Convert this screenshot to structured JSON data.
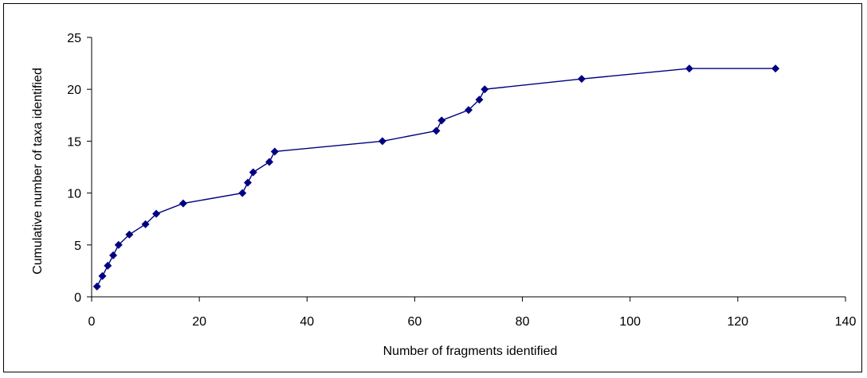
{
  "chart_data": {
    "type": "line",
    "title": "",
    "xlabel": "Number of fragments identified",
    "ylabel": "Cumulative number of taxa identified",
    "xlim": [
      0,
      140
    ],
    "ylim": [
      0,
      25
    ],
    "xticks": [
      0,
      20,
      40,
      60,
      80,
      100,
      120,
      140
    ],
    "yticks": [
      0,
      5,
      10,
      15,
      20,
      25
    ],
    "grid": false,
    "legend": "none",
    "series": [
      {
        "color": "#000080",
        "marker": "diamond",
        "x": [
          1,
          2,
          3,
          4,
          5,
          7,
          10,
          12,
          17,
          28,
          29,
          30,
          33,
          34,
          54,
          64,
          65,
          70,
          72,
          73,
          91,
          111,
          127
        ],
        "y": [
          1,
          2,
          3,
          4,
          5,
          6,
          7,
          8,
          9,
          10,
          11,
          12,
          13,
          14,
          15,
          16,
          17,
          18,
          19,
          20,
          21,
          22,
          22
        ]
      }
    ]
  }
}
